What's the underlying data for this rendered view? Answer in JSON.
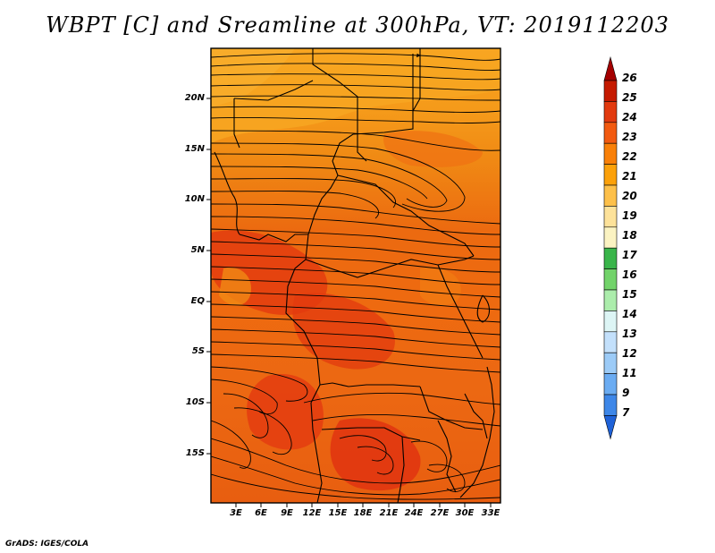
{
  "title": "WBPT [C] and Sreamline at 300hPa, VT: 2019112203",
  "credit": "GrADS: IGES/COLA",
  "map": {
    "lat_labels": [
      "20N",
      "15N",
      "10N",
      "5N",
      "EQ",
      "5S",
      "10S",
      "15S"
    ],
    "lon_labels": [
      "3E",
      "6E",
      "9E",
      "12E",
      "15E",
      "18E",
      "21E",
      "24E",
      "27E",
      "30E",
      "33E"
    ],
    "extent": {
      "lon_min": 0,
      "lon_max": 34,
      "lat_min": -19.5,
      "lat_max": 24.5
    },
    "shading": "wet-bulb potential temperature, mostly 22-24 C",
    "overlay": "black streamlines with arrowheads and black country borders"
  },
  "colorbar": {
    "labels": [
      "26",
      "25",
      "24",
      "23",
      "22",
      "21",
      "20",
      "19",
      "18",
      "17",
      "16",
      "15",
      "14",
      "13",
      "12",
      "11",
      "9",
      "7"
    ],
    "colors": [
      "#a40000",
      "#c51a00",
      "#e23a0f",
      "#f25a10",
      "#f98008",
      "#fca10a",
      "#fdc04a",
      "#fde29a",
      "#fbf3c2",
      "#39b54a",
      "#72d36a",
      "#acedac",
      "#ddf5f5",
      "#c3e0fb",
      "#9ccbf7",
      "#6bacf2",
      "#3e87e8",
      "#1f62d8"
    ],
    "extends": "both"
  }
}
